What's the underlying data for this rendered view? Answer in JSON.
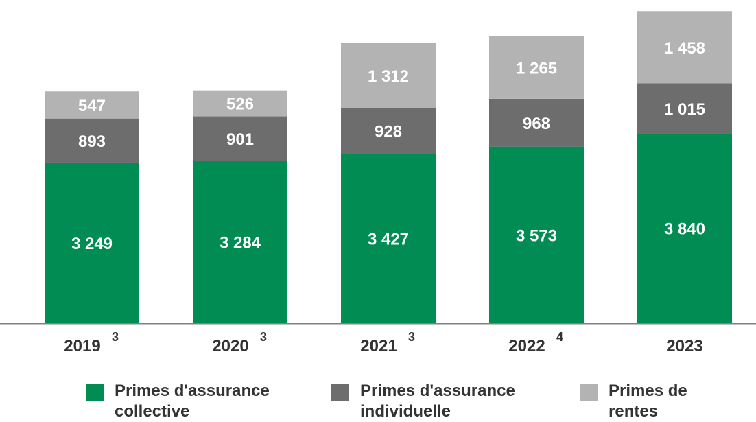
{
  "chart_data": {
    "type": "bar",
    "stacked": true,
    "categories": [
      "2019",
      "2020",
      "2021",
      "2022",
      "2023"
    ],
    "category_footnotes": [
      "3",
      "3",
      "3",
      "4",
      ""
    ],
    "series": [
      {
        "name": "Primes d'assurance collective",
        "values": [
          3249,
          3284,
          3427,
          3573,
          3840
        ],
        "labels": [
          "3 249",
          "3 284",
          "3 427",
          "3 573",
          "3 840"
        ],
        "color": "#008c52"
      },
      {
        "name": "Primes d'assurance individuelle",
        "values": [
          893,
          901,
          928,
          968,
          1015
        ],
        "labels": [
          "893",
          "901",
          "928",
          "968",
          "1 015"
        ],
        "color": "#6d6d6d"
      },
      {
        "name": "Primes de rentes",
        "values": [
          547,
          526,
          1312,
          1265,
          1458
        ],
        "labels": [
          "547",
          "526",
          "1 312",
          "1 265",
          "1 458"
        ],
        "color": "#b3b3b3"
      }
    ],
    "ylim": [
      0,
      6400
    ],
    "grid": false,
    "legend_position": "bottom"
  }
}
